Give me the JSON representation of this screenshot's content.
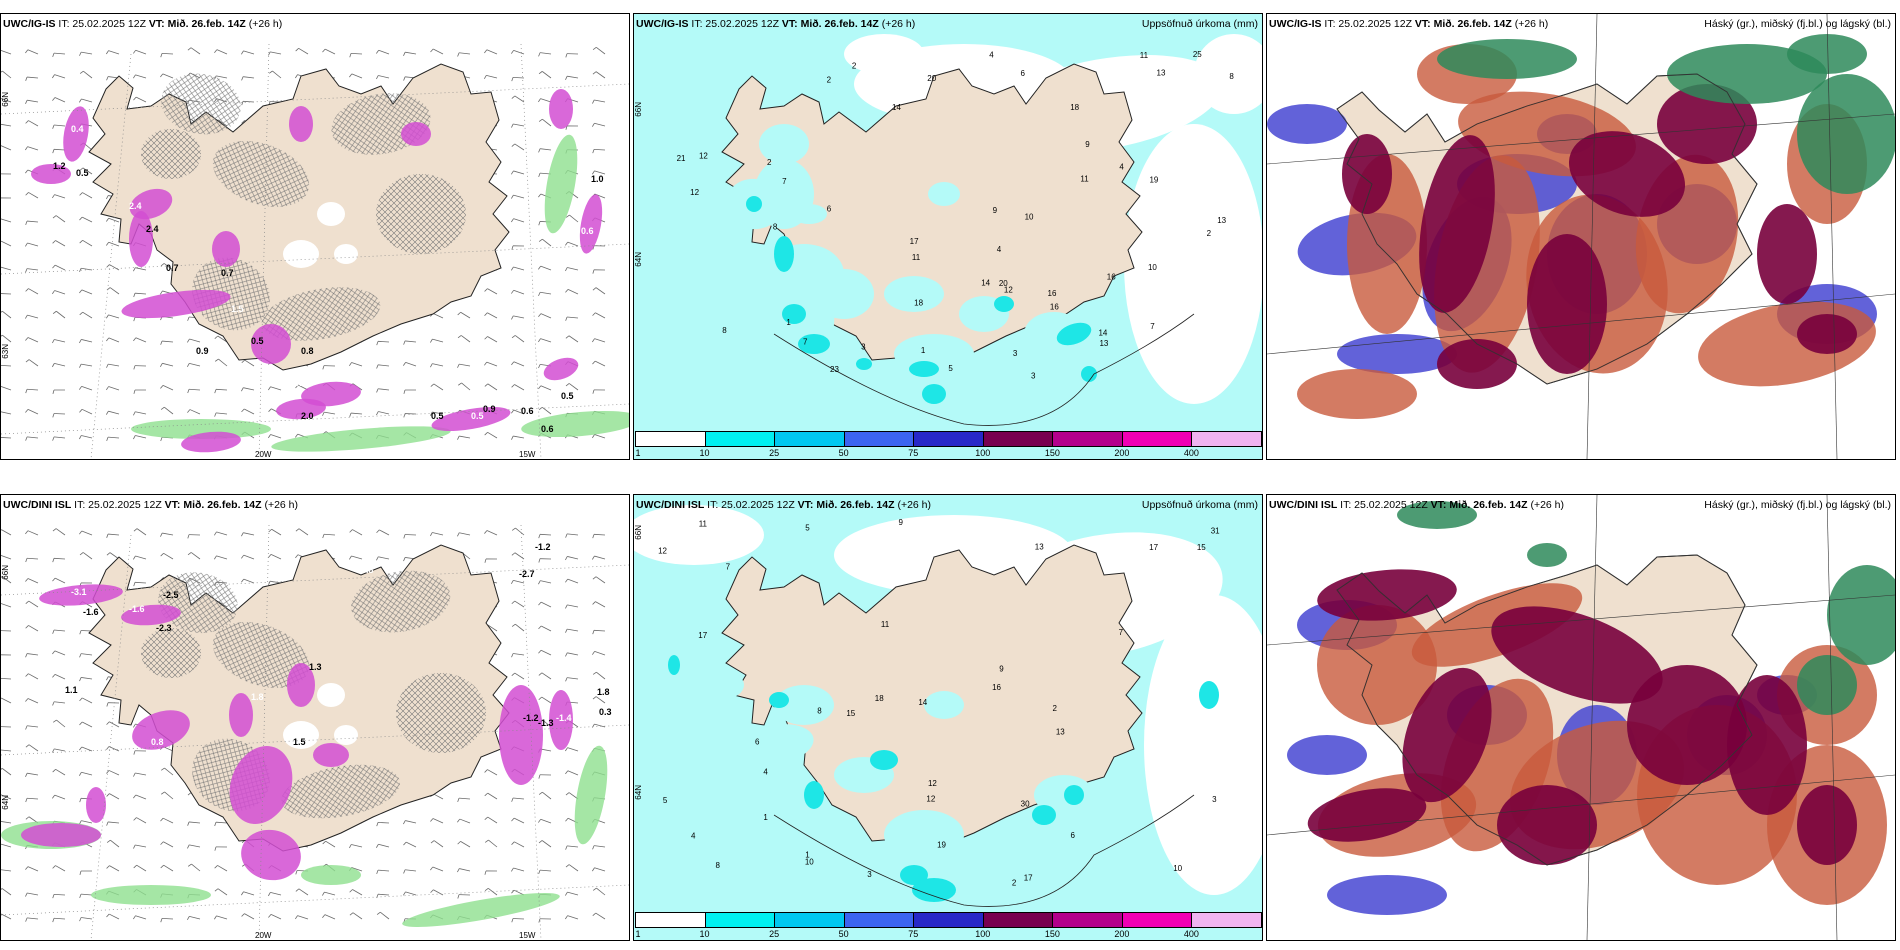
{
  "rows": [
    {
      "model": "UWC/IG-IS",
      "it_label": "IT: 25.02.2025 12Z",
      "vt_label": "VT: Mið. 26.feb. 14Z",
      "lead": "(+26 h)",
      "precip_title": "Uppsöfnuð úrkoma (mm)",
      "cloud_title": "Háský (gr.), miðský (fj.bl.) og lágský (bl.)",
      "lon_labels": [
        "20W",
        "15W"
      ],
      "lat_labels": [
        "66N",
        "64N",
        "63N"
      ],
      "temp_values": [
        "0.4",
        "1.2",
        "0.5",
        "2.4",
        "2.4",
        "0.7",
        "1.8",
        "0.9",
        "0.7",
        "1.5",
        "0.5",
        "0.8",
        "0.7",
        "2.0",
        "0.5",
        "0.5",
        "0.6",
        "0.9",
        "0.8",
        "0.6",
        "0.5",
        "0.6",
        "1.0"
      ],
      "precip_values": [
        "3",
        "2",
        "1",
        "2",
        "4",
        "3",
        "2",
        "6",
        "11",
        "7",
        "8",
        "21",
        "17",
        "20",
        "11",
        "11",
        "12",
        "13",
        "16",
        "19",
        "14",
        "12",
        "23",
        "13",
        "10",
        "9",
        "8",
        "7",
        "5",
        "14",
        "16",
        "25",
        "18",
        "3",
        "2",
        "1",
        "4",
        "12",
        "13",
        "16",
        "20",
        "9",
        "8",
        "7",
        "6",
        "10",
        "14",
        "18",
        "4"
      ]
    },
    {
      "model": "UWC/DINI ISL",
      "it_label": "IT: 25.02.2025 12Z",
      "vt_label": "VT: Mið. 26.feb. 14Z",
      "lead": "(+26 h)",
      "precip_title": "Uppsöfnuð úrkoma (mm)",
      "cloud_title": "Háský (gr.), miðský (fj.bl.) og lágský (bl.)",
      "lon_labels": [
        "20W",
        "15W"
      ],
      "lat_labels": [
        "66N",
        "64N"
      ],
      "temp_values": [
        "-3.1",
        "-1.6",
        "-2.5",
        "-1.6",
        "-2.3",
        "1.3",
        "1.8",
        "-1.2",
        "-2.7",
        "0.3",
        "1.1",
        "1.5",
        "0.8",
        "-1.2",
        "-1.3",
        "-1.4",
        "1.8",
        "0.3"
      ],
      "precip_values": [
        "3",
        "2",
        "1",
        "6",
        "5",
        "7",
        "8",
        "10",
        "9",
        "11",
        "17",
        "19",
        "18",
        "12",
        "13",
        "16",
        "17",
        "10",
        "15",
        "12",
        "30",
        "31",
        "9",
        "8",
        "7",
        "6",
        "5",
        "4",
        "11",
        "13",
        "14",
        "17",
        "12",
        "15",
        "1",
        "2",
        "3",
        "4"
      ]
    }
  ],
  "colorbar": {
    "ticks": [
      "1",
      "10",
      "25",
      "50",
      "75",
      "100",
      "150",
      "200",
      "400"
    ],
    "colors": [
      "#ffffff",
      "#00f0f0",
      "#00c8f0",
      "#3c64f0",
      "#2828c8",
      "#780050",
      "#b4008c",
      "#f000b4",
      "#f0b4f0"
    ]
  },
  "colors": {
    "land": "#efe0cf",
    "sea_precip": "#b4faf8",
    "precip_cyan": "#1ee6e6",
    "magenta": "#d24ed2",
    "green": "#8ee08e",
    "cloud_high": "#78003c",
    "cloud_mid": "#c85a3c",
    "cloud_low": "#4646d2",
    "cloud_green": "#2e8a5a"
  }
}
